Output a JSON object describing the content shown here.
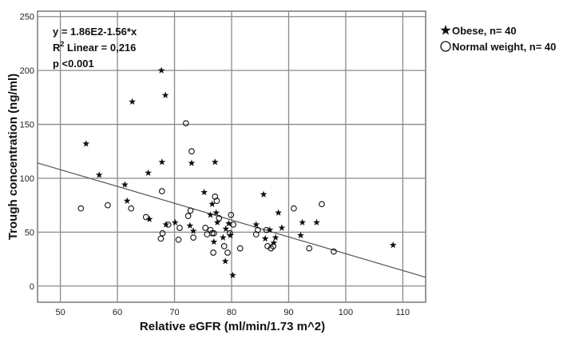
{
  "chart_data": {
    "type": "scatter",
    "xlabel": "Relative eGFR (ml/min/1.73 m^2)",
    "ylabel": "Trough concentration (ng/ml)",
    "xlim": [
      46,
      114
    ],
    "ylim": [
      -15,
      255
    ],
    "x_ticks": [
      50,
      60,
      70,
      80,
      90,
      100,
      110
    ],
    "y_ticks": [
      0,
      50,
      100,
      150,
      200,
      250
    ],
    "grid": true,
    "legend_position": "top-right",
    "annotation": {
      "equation": "y = 1.86E2-1.56*x",
      "r2_prefix": "R",
      "r2_sup": "2",
      "r2_rest": " Linear = 0,216",
      "p_value": "p <0.001"
    },
    "fit_line": {
      "intercept": 186,
      "slope": -1.56
    },
    "series": [
      {
        "name": "Obese, n= 40",
        "marker": "star",
        "points": [
          [
            54.5,
            132
          ],
          [
            56.8,
            103
          ],
          [
            61.3,
            94
          ],
          [
            61.7,
            79
          ],
          [
            62.6,
            171
          ],
          [
            65.4,
            105
          ],
          [
            65.6,
            62
          ],
          [
            67.7,
            200
          ],
          [
            67.8,
            115
          ],
          [
            68.4,
            177
          ],
          [
            68.5,
            57
          ],
          [
            70.1,
            59
          ],
          [
            72.7,
            56
          ],
          [
            73,
            114
          ],
          [
            73.3,
            51
          ],
          [
            75.2,
            87
          ],
          [
            76.3,
            66
          ],
          [
            76.6,
            76
          ],
          [
            76.9,
            41
          ],
          [
            77.1,
            115
          ],
          [
            77.3,
            68
          ],
          [
            77.5,
            59
          ],
          [
            78.5,
            45
          ],
          [
            78.9,
            23
          ],
          [
            79,
            53
          ],
          [
            79.5,
            58
          ],
          [
            79.8,
            47
          ],
          [
            80.2,
            10
          ],
          [
            84.3,
            57
          ],
          [
            85.6,
            85
          ],
          [
            85.9,
            44
          ],
          [
            86.7,
            52
          ],
          [
            87.4,
            40
          ],
          [
            87.7,
            45
          ],
          [
            88.2,
            68
          ],
          [
            88.8,
            54
          ],
          [
            92.1,
            47
          ],
          [
            92.4,
            59
          ],
          [
            94.9,
            59
          ],
          [
            108.3,
            38
          ]
        ]
      },
      {
        "name": "Normal weight, n= 40",
        "marker": "circle",
        "points": [
          [
            53.6,
            72
          ],
          [
            58.3,
            75
          ],
          [
            62.4,
            72
          ],
          [
            65,
            64
          ],
          [
            67.6,
            44
          ],
          [
            67.8,
            88
          ],
          [
            67.9,
            49
          ],
          [
            68.9,
            57
          ],
          [
            70.7,
            43
          ],
          [
            70.9,
            54
          ],
          [
            72,
            151
          ],
          [
            72.4,
            65
          ],
          [
            72.8,
            70
          ],
          [
            73,
            125
          ],
          [
            73.3,
            45
          ],
          [
            75.4,
            54
          ],
          [
            75.7,
            48
          ],
          [
            76.3,
            52
          ],
          [
            76.6,
            49
          ],
          [
            76.8,
            31
          ],
          [
            76.9,
            49
          ],
          [
            77.1,
            83
          ],
          [
            77.4,
            79
          ],
          [
            77.8,
            63
          ],
          [
            78.7,
            37
          ],
          [
            79.3,
            31
          ],
          [
            79.7,
            49
          ],
          [
            79.9,
            66
          ],
          [
            80.3,
            57
          ],
          [
            81.5,
            35
          ],
          [
            84.3,
            48
          ],
          [
            84.6,
            52
          ],
          [
            86.1,
            52
          ],
          [
            86.3,
            37
          ],
          [
            86.9,
            35
          ],
          [
            87.3,
            37
          ],
          [
            90.9,
            72
          ],
          [
            93.6,
            35
          ],
          [
            95.8,
            76
          ],
          [
            97.9,
            32
          ]
        ]
      }
    ]
  }
}
